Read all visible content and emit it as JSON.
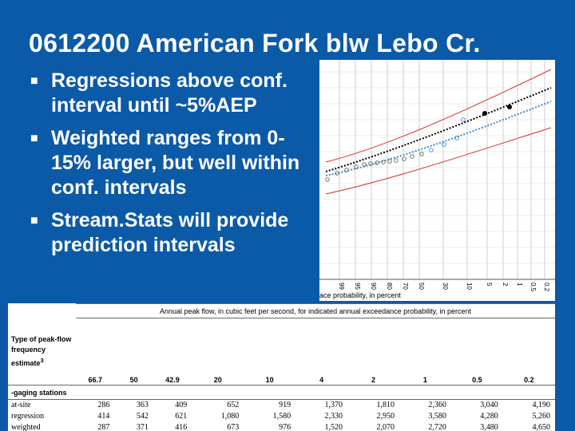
{
  "slide": {
    "title": "0612200 American Fork blw Lebo Cr.",
    "bullets": [
      "Regressions above conf. interval until ~5%AEP",
      "Weighted ranges from 0-15% larger, but well within conf. intervals",
      "Stream.Stats will provide prediction intervals"
    ]
  },
  "chart_data": {
    "type": "scatter",
    "x_tick_labels": [
      "99",
      "95",
      "90",
      "80",
      "70",
      "50",
      "30",
      "10",
      "5",
      "2",
      "1",
      "0.5",
      "0.2"
    ],
    "xlabel_fragment": "ace probability, in percent",
    "series": [
      {
        "values": [
          0.03,
          0.06,
          0.09,
          0.12,
          0.15,
          0.19,
          0.23,
          0.27,
          0.31,
          0.35,
          0.38,
          0.42,
          0.46,
          0.5,
          0.53,
          0.57,
          0.62
        ]
      },
      {
        "values": [
          0.72,
          0.9
        ]
      },
      {
        "values": [
          0.36,
          0.5,
          0.7
        ]
      },
      {
        "values": [
          0.5,
          0.62,
          0.72
        ]
      }
    ]
  },
  "table": {
    "caption": "Annual peak flow, in cubic feet per second, for indicated annual exceedance probability, in percent",
    "type_label": "Type of peak-flow frequency estimate",
    "type_footnote": "3",
    "probabilities": [
      "66.7",
      "50",
      "42.9",
      "20",
      "10",
      "4",
      "2",
      "1",
      "0.5",
      "0.2"
    ],
    "section_label": "-gaging stations",
    "rows": [
      {
        "label": "at-site",
        "values": [
          "286",
          "363",
          "409",
          "652",
          "919",
          "1,370",
          "1,810",
          "2,360",
          "3,040",
          "4,190"
        ]
      },
      {
        "label": "regression",
        "values": [
          "414",
          "542",
          "621",
          "1,080",
          "1,580",
          "2,330",
          "2,950",
          "3,580",
          "4,280",
          "5,260"
        ]
      },
      {
        "label": "weighted",
        "values": [
          "287",
          "371",
          "416",
          "673",
          "976",
          "1,520",
          "2,070",
          "2,720",
          "3,480",
          "4,650"
        ]
      }
    ]
  }
}
